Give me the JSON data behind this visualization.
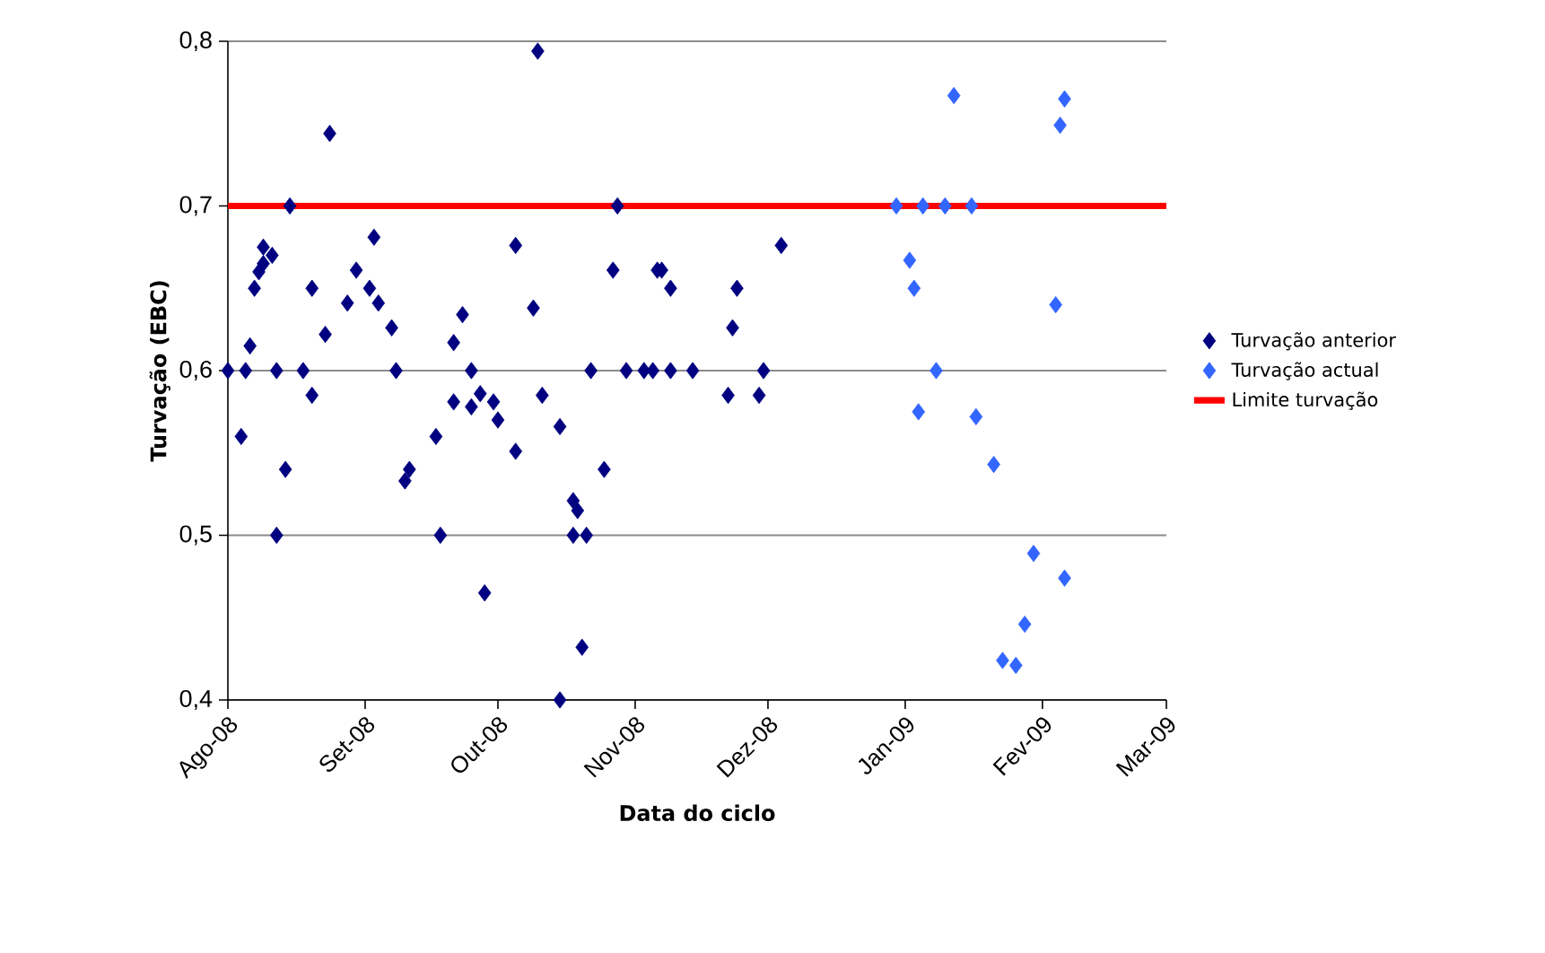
{
  "chart_data": {
    "type": "scatter",
    "xlabel": "Data do ciclo",
    "ylabel": "Turvação (EBC)",
    "xlim": [
      "2008-08-01",
      "2009-03-01"
    ],
    "xticks": [
      {
        "value": "2008-08-01",
        "label": "Ago-08"
      },
      {
        "value": "2008-09-01",
        "label": "Set-08"
      },
      {
        "value": "2008-10-01",
        "label": "Out-08"
      },
      {
        "value": "2008-11-01",
        "label": "Nov-08"
      },
      {
        "value": "2008-12-01",
        "label": "Dez-08"
      },
      {
        "value": "2009-01-01",
        "label": "Jan-09"
      },
      {
        "value": "2009-02-01",
        "label": "Fev-09"
      },
      {
        "value": "2009-03-01",
        "label": "Mar-09"
      }
    ],
    "ylim": [
      0.4,
      0.8
    ],
    "yticks": [
      {
        "value": 0.4,
        "label": "0,4"
      },
      {
        "value": 0.5,
        "label": "0,5"
      },
      {
        "value": 0.6,
        "label": "0,6"
      },
      {
        "value": 0.7,
        "label": "0,7"
      },
      {
        "value": 0.8,
        "label": "0,8"
      }
    ],
    "grid": "y",
    "legend": "right",
    "marker": "diamond",
    "series": [
      {
        "name": "Turvação anterior",
        "color": "#000080",
        "x": [
          "2008-08-01",
          "2008-08-04",
          "2008-08-05",
          "2008-08-06",
          "2008-08-07",
          "2008-08-08",
          "2008-08-09",
          "2008-08-09",
          "2008-08-11",
          "2008-08-12",
          "2008-08-12",
          "2008-08-14",
          "2008-08-15",
          "2008-08-18",
          "2008-08-20",
          "2008-08-20",
          "2008-08-23",
          "2008-08-24",
          "2008-08-28",
          "2008-08-30",
          "2008-09-02",
          "2008-09-03",
          "2008-09-04",
          "2008-09-07",
          "2008-09-08",
          "2008-09-10",
          "2008-09-11",
          "2008-09-17",
          "2008-09-18",
          "2008-09-21",
          "2008-09-23",
          "2008-09-25",
          "2008-09-21",
          "2008-09-25",
          "2008-09-27",
          "2008-09-30",
          "2008-10-01",
          "2008-09-28",
          "2008-10-05",
          "2008-10-05",
          "2008-10-09",
          "2008-10-10",
          "2008-10-11",
          "2008-10-15",
          "2008-10-15",
          "2008-10-18",
          "2008-10-19",
          "2008-10-18",
          "2008-10-21",
          "2008-10-20",
          "2008-10-22",
          "2008-10-25",
          "2008-10-27",
          "2008-10-28",
          "2008-10-30",
          "2008-11-03",
          "2008-11-05",
          "2008-11-06",
          "2008-11-07",
          "2008-11-09",
          "2008-11-09",
          "2008-11-14",
          "2008-11-22",
          "2008-11-23",
          "2008-11-24",
          "2008-11-29",
          "2008-11-30",
          "2008-12-04"
        ],
        "values": [
          0.6,
          0.56,
          0.6,
          0.615,
          0.65,
          0.66,
          0.665,
          0.675,
          0.67,
          0.6,
          0.5,
          0.54,
          0.7,
          0.6,
          0.585,
          0.65,
          0.622,
          0.744,
          0.641,
          0.661,
          0.65,
          0.681,
          0.641,
          0.626,
          0.6,
          0.533,
          0.54,
          0.56,
          0.5,
          0.617,
          0.634,
          0.6,
          0.581,
          0.578,
          0.586,
          0.581,
          0.57,
          0.465,
          0.551,
          0.676,
          0.638,
          0.794,
          0.585,
          0.566,
          0.4,
          0.521,
          0.515,
          0.5,
          0.5,
          0.432,
          0.6,
          0.54,
          0.661,
          0.7,
          0.6,
          0.6,
          0.6,
          0.661,
          0.661,
          0.65,
          0.6,
          0.6,
          0.585,
          0.626,
          0.65,
          0.585,
          0.6,
          0.676
        ]
      },
      {
        "name": "Turvação actual",
        "color": "#3366ff",
        "x": [
          "2008-12-30",
          "2009-01-02",
          "2009-01-03",
          "2009-01-04",
          "2009-01-05",
          "2009-01-08",
          "2009-01-10",
          "2009-01-12",
          "2009-01-16",
          "2009-01-17",
          "2009-01-21",
          "2009-01-23",
          "2009-01-26",
          "2009-01-28",
          "2009-01-30",
          "2009-02-04",
          "2009-02-05",
          "2009-02-06",
          "2009-02-06"
        ],
        "values": [
          0.7,
          0.667,
          0.65,
          0.575,
          0.7,
          0.6,
          0.7,
          0.767,
          0.7,
          0.572,
          0.543,
          0.424,
          0.421,
          0.446,
          0.489,
          0.64,
          0.749,
          0.765,
          0.474
        ]
      }
    ],
    "ref_lines": [
      {
        "axis": "y",
        "value": 0.7,
        "label": "Limite turvação",
        "color": "#ff0000"
      }
    ]
  }
}
